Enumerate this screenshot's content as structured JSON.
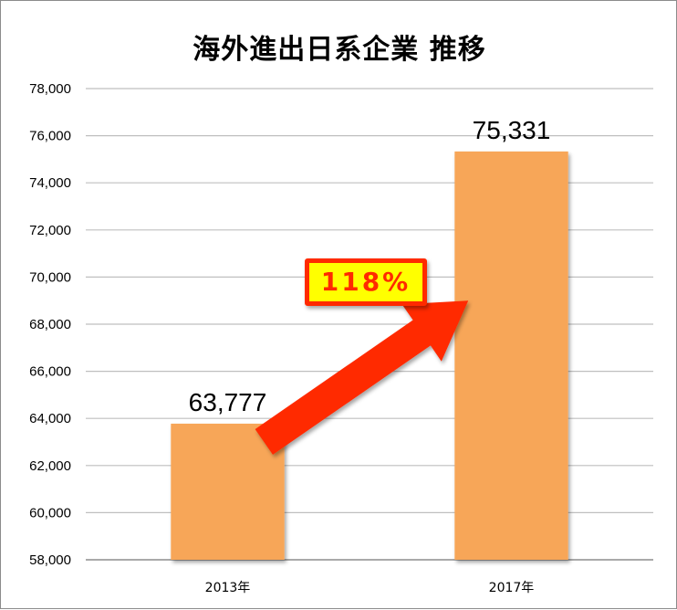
{
  "chart_data": {
    "type": "bar",
    "title": "海外進出日系企業 推移",
    "categories": [
      "2013年",
      "2017年"
    ],
    "values": [
      63777,
      75331
    ],
    "value_labels": [
      "63,777",
      "75,331"
    ],
    "ylim": [
      58000,
      78000
    ],
    "yticks": [
      58000,
      60000,
      62000,
      64000,
      66000,
      68000,
      70000,
      72000,
      74000,
      76000,
      78000
    ],
    "ytick_labels": [
      "58,000",
      "60,000",
      "62,000",
      "64,000",
      "66,000",
      "68,000",
      "70,000",
      "72,000",
      "74,000",
      "76,000",
      "78,000"
    ],
    "grid": true,
    "legend": "none",
    "bar_color": "#f7a659",
    "grid_color": "#bfbfbf",
    "annotation": {
      "text": "118%",
      "arrow_color": "#ff2a00",
      "badge_fill": "#ffff00",
      "badge_text_color": "#ff2a00"
    }
  }
}
